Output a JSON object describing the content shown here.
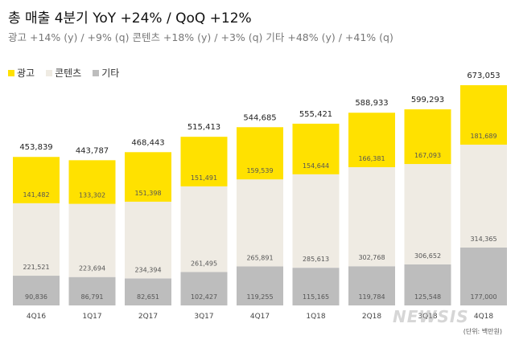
{
  "header": {
    "title": "총 매출 4분기 YoY +24% / QoQ +12%",
    "subtitle": "광고 +14% (y) / +9% (q)   콘텐츠 +18% (y) / +3% (q)   기타 +48% (y) / +41% (q)"
  },
  "footer": {
    "unit": "(단위: 백만원)",
    "watermark": "NEWSIS"
  },
  "colors": {
    "ad": "#ffe100",
    "content": "#efebe3",
    "other": "#bdbdbd"
  },
  "chart_data": {
    "type": "bar",
    "stacked": true,
    "categories": [
      "4Q16",
      "1Q17",
      "2Q17",
      "3Q17",
      "4Q17",
      "1Q18",
      "2Q18",
      "3Q18",
      "4Q18"
    ],
    "series": [
      {
        "name": "기타",
        "values": [
          90836,
          86791,
          82651,
          102427,
          119255,
          115165,
          119784,
          125548,
          177000
        ]
      },
      {
        "name": "콘텐츠",
        "values": [
          221521,
          223694,
          234394,
          261495,
          265891,
          285613,
          302768,
          306652,
          314365
        ]
      },
      {
        "name": "광고",
        "values": [
          141482,
          133302,
          151398,
          151491,
          159539,
          154644,
          166381,
          167093,
          181689
        ]
      }
    ],
    "totals": [
      453839,
      443787,
      468443,
      515413,
      544685,
      555421,
      588933,
      599293,
      673053
    ],
    "legend": [
      "광고",
      "콘텐츠",
      "기타"
    ],
    "legend_position": "top-left",
    "grid": false
  }
}
